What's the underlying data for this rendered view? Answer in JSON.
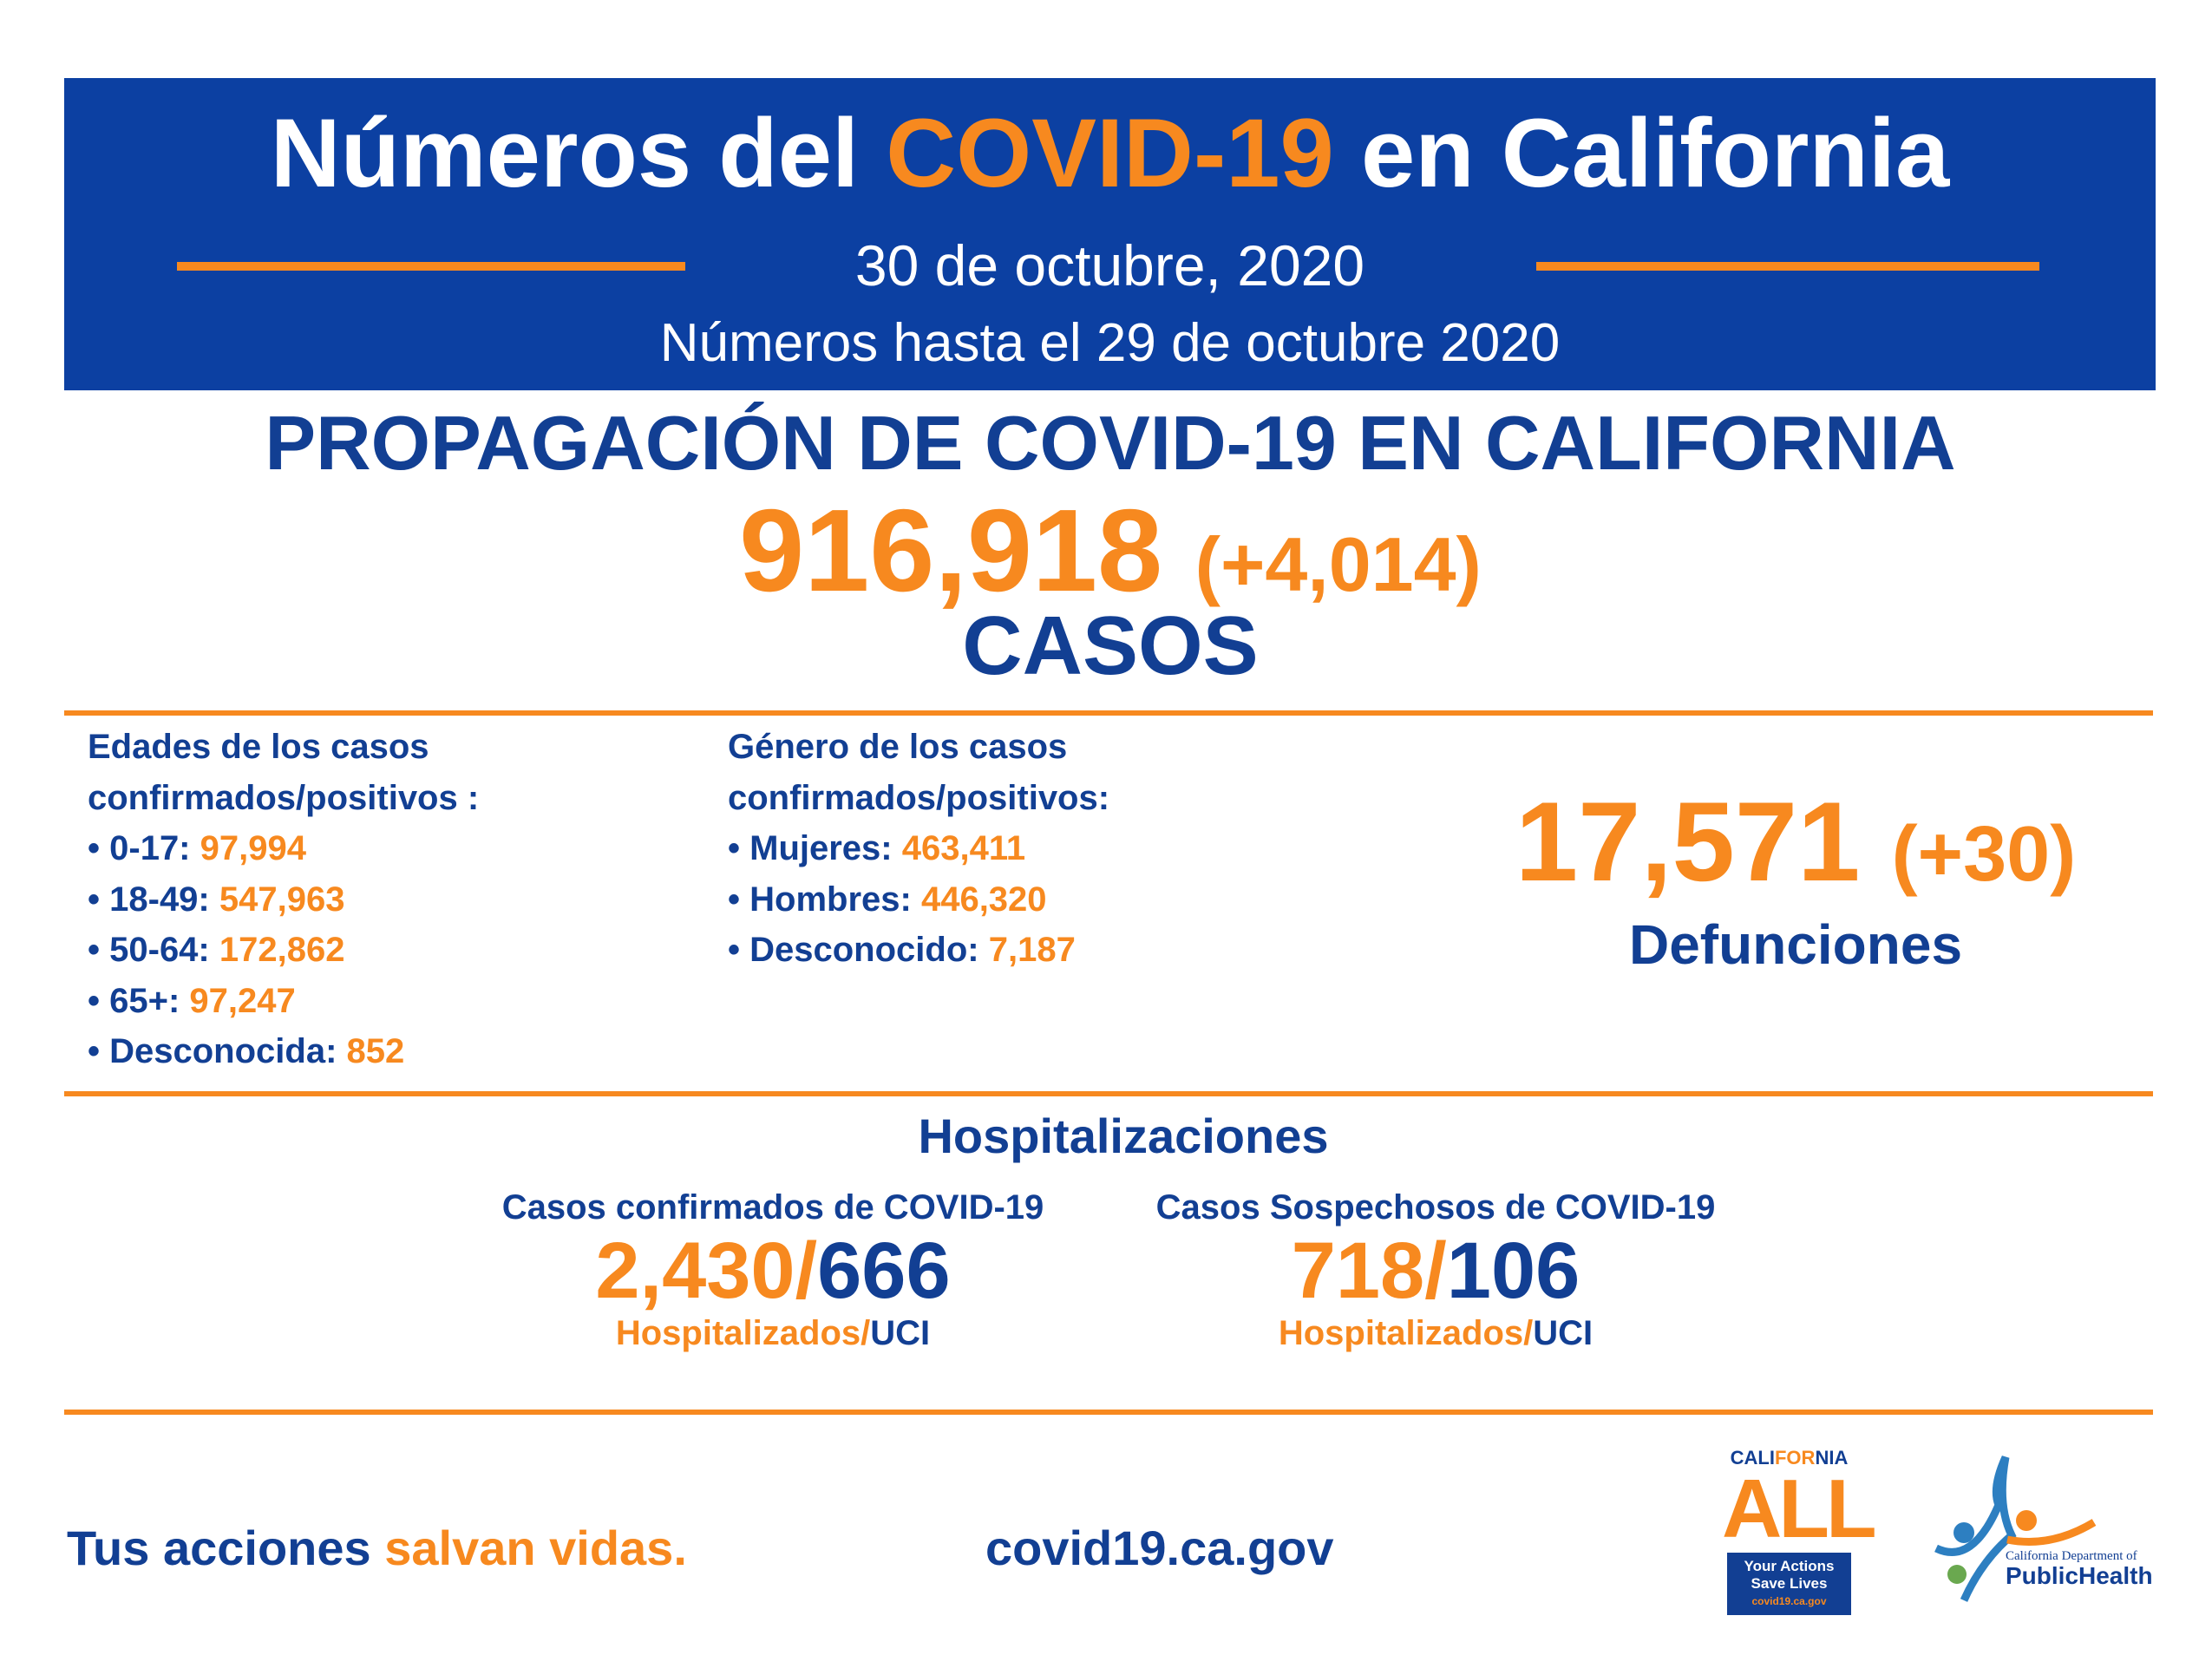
{
  "header": {
    "title_start": "Números del",
    "title_highlight": "COVID-19",
    "title_end": "en California",
    "date": "30 de octubre, 2020",
    "subtitle": "Números hasta el 29 de octubre 2020"
  },
  "spread": {
    "title": "PROPAGACIÓN DE COVID-19 EN CALIFORNIA",
    "cases": "916,918",
    "cases_change": "(+4,014)",
    "cases_label": "CASOS"
  },
  "ages": {
    "title": "Edades de los casos confirmados/positivos :",
    "items": [
      {
        "label": "0-17:",
        "value": "97,994"
      },
      {
        "label": "18-49:",
        "value": "547,963"
      },
      {
        "label": "50-64:",
        "value": "172,862"
      },
      {
        "label": "65+:",
        "value": "97,247"
      },
      {
        "label": "Desconocida:",
        "value": "852"
      }
    ]
  },
  "gender": {
    "title": "Género de los casos confirmados/positivos:",
    "items": [
      {
        "label": "Mujeres:",
        "value": "463,411"
      },
      {
        "label": "Hombres:",
        "value": "446,320"
      },
      {
        "label": "Desconocido:",
        "value": "7,187"
      }
    ]
  },
  "deaths": {
    "total": "17,571",
    "change": "(+30)",
    "label": "Defunciones"
  },
  "hospitalizations": {
    "title": "Hospitalizaciones",
    "separator": "/",
    "hospitalized_label": "Hospitalizados",
    "icu_label": "UCI",
    "groups": [
      {
        "title": "Casos confirmados de COVID-19",
        "hospitalized": "2,430",
        "icu": "666"
      },
      {
        "title": "Casos Sospechosos de COVID-19",
        "hospitalized": "718",
        "icu": "106"
      }
    ]
  },
  "footer": {
    "slogan_start": "Tus acciones",
    "slogan_end": "salvan vidas.",
    "url": "covid19.ca.gov"
  },
  "logos": {
    "ca_all": {
      "california_1": "CALI",
      "california_2": "FOR",
      "california_3": "NIA",
      "all": "ALL",
      "tagline": "Your Actions Save Lives",
      "url": "covid19.ca.gov"
    },
    "cdph": {
      "line1": "California Department of",
      "line2": "PublicHealth"
    }
  }
}
